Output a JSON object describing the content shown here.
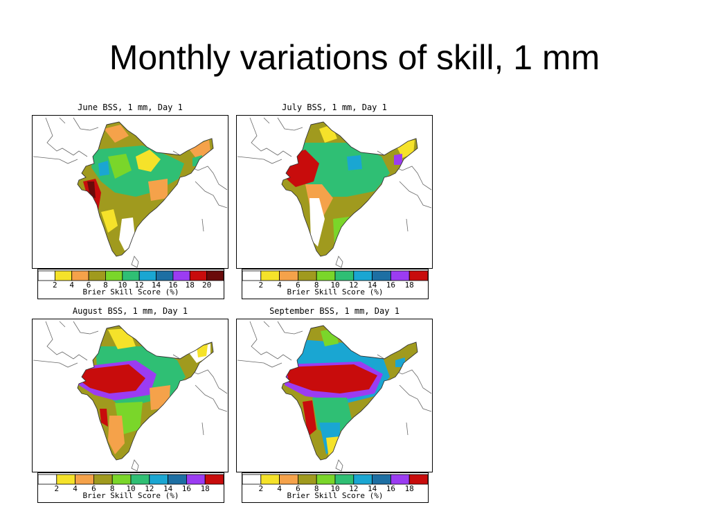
{
  "slide": {
    "title": "Monthly variations of skill, 1 mm"
  },
  "colors": {
    "2": "#ffffff",
    "4": "#f5e22a",
    "6": "#f5a24a",
    "8": "#a09a1e",
    "10": "#7ad62a",
    "12": "#2fbf74",
    "14": "#1aa6d2",
    "16": "#1d6fa3",
    "18": "#9b3cf2",
    "20": "#c80c0c",
    "22": "#6a0a0a"
  },
  "panels": [
    {
      "title": "June BSS, 1 mm, Day 1",
      "legend_title": "Brier Skill Score (%)",
      "legend_labels": [
        "2",
        "4",
        "6",
        "8",
        "10",
        "12",
        "14",
        "16",
        "18",
        "20"
      ],
      "legend_colors": [
        "#ffffff",
        "#f5e22a",
        "#f5a24a",
        "#a09a1e",
        "#7ad62a",
        "#2fbf74",
        "#1aa6d2",
        "#1d6fa3",
        "#9b3cf2",
        "#c80c0c",
        "#6a0a0a"
      ]
    },
    {
      "title": "July BSS, 1 mm, Day 1",
      "legend_title": "Brier Skill Score (%)",
      "legend_labels": [
        "2",
        "4",
        "6",
        "8",
        "10",
        "12",
        "14",
        "16",
        "18"
      ],
      "legend_colors": [
        "#ffffff",
        "#f5e22a",
        "#f5a24a",
        "#a09a1e",
        "#7ad62a",
        "#2fbf74",
        "#1aa6d2",
        "#1d6fa3",
        "#9b3cf2",
        "#c80c0c"
      ]
    },
    {
      "title": "August BSS, 1 mm, Day 1",
      "legend_title": "Brier Skill Score (%)",
      "legend_labels": [
        "2",
        "4",
        "6",
        "8",
        "10",
        "12",
        "14",
        "16",
        "18"
      ],
      "legend_colors": [
        "#ffffff",
        "#f5e22a",
        "#f5a24a",
        "#a09a1e",
        "#7ad62a",
        "#2fbf74",
        "#1aa6d2",
        "#1d6fa3",
        "#9b3cf2",
        "#c80c0c"
      ]
    },
    {
      "title": "September BSS, 1 mm, Day 1",
      "legend_title": "Brier Skill Score (%)",
      "legend_labels": [
        "2",
        "4",
        "6",
        "8",
        "10",
        "12",
        "14",
        "16",
        "18"
      ],
      "legend_colors": [
        "#ffffff",
        "#f5e22a",
        "#f5a24a",
        "#a09a1e",
        "#7ad62a",
        "#2fbf74",
        "#1aa6d2",
        "#1d6fa3",
        "#9b3cf2",
        "#c80c0c"
      ]
    }
  ]
}
